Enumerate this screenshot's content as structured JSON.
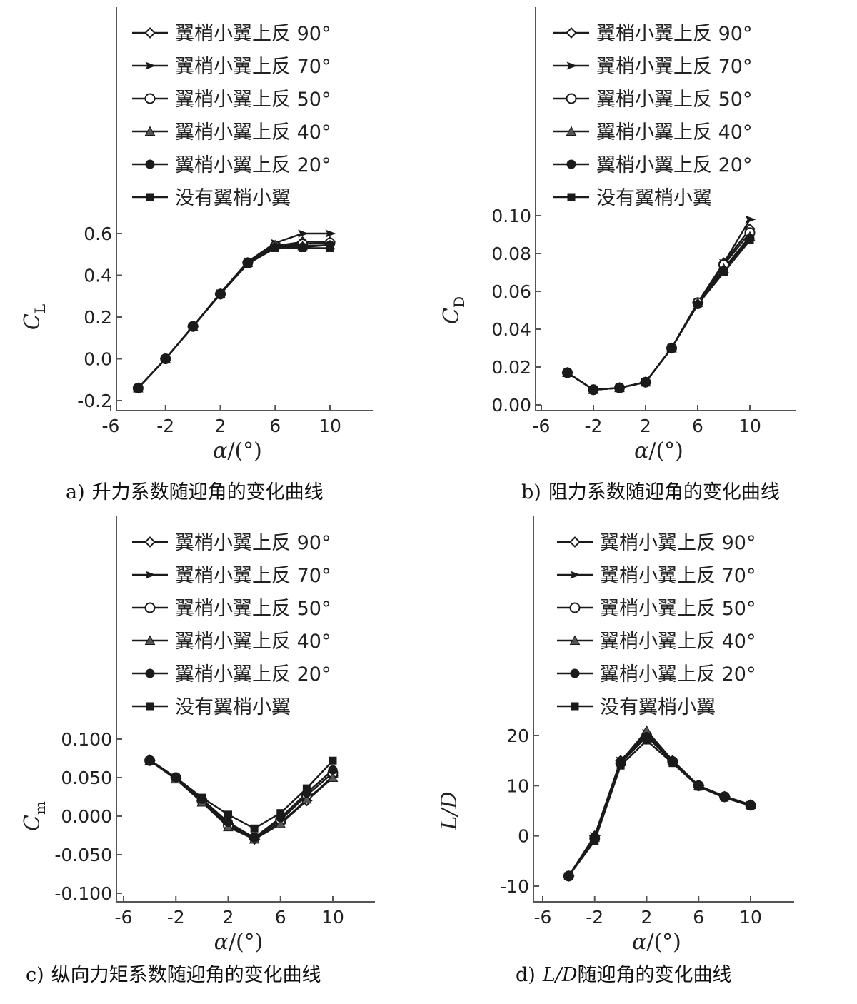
{
  "legend_labels": [
    "翼梢小翼上反 90°",
    "翼梢小翼上反 70°",
    "翼梢小翼上反 50°",
    "翼梢小翼上反 40°",
    "翼梢小翼上反 20°",
    "没有翼梢小翼"
  ],
  "xlabel": {
    "symbol": "α",
    "unit": "/(°)"
  },
  "line_color": "#1a1a1a",
  "chart_data": [
    {
      "id": "a",
      "type": "line",
      "sublabel": "a)",
      "caption": "升力系数随迎角的变化曲线",
      "ylabel": {
        "main": "C",
        "sub": "L"
      },
      "xlim": [
        -6,
        12
      ],
      "ylim": [
        -0.22,
        0.62
      ],
      "xticks": [
        "-6",
        "-2",
        "2",
        "6",
        "10"
      ],
      "xtick_values": [
        -6,
        -2,
        2,
        6,
        10
      ],
      "yticks": [
        "-0.2",
        "0.0",
        "0.2",
        "0.4",
        "0.6"
      ],
      "ytick_values": [
        -0.2,
        0.0,
        0.2,
        0.4,
        0.6
      ],
      "x": [
        -4,
        -2,
        0,
        2,
        4,
        6,
        8,
        10
      ],
      "series": [
        {
          "marker": "diamond-open",
          "values": [
            -0.14,
            0.0,
            0.155,
            0.31,
            0.46,
            0.54,
            0.56,
            0.56
          ]
        },
        {
          "marker": "arrow",
          "values": [
            -0.14,
            0.0,
            0.155,
            0.315,
            0.465,
            0.555,
            0.6,
            0.6
          ]
        },
        {
          "marker": "circle-open",
          "values": [
            -0.14,
            0.0,
            0.155,
            0.31,
            0.46,
            0.54,
            0.55,
            0.555
          ]
        },
        {
          "marker": "triangle",
          "values": [
            -0.14,
            0.0,
            0.155,
            0.31,
            0.46,
            0.545,
            0.54,
            0.545
          ]
        },
        {
          "marker": "circle-filled",
          "values": [
            -0.14,
            0.0,
            0.155,
            0.31,
            0.46,
            0.535,
            0.535,
            0.545
          ]
        },
        {
          "marker": "square-filled",
          "values": [
            -0.14,
            0.0,
            0.155,
            0.31,
            0.455,
            0.53,
            0.53,
            0.53
          ]
        }
      ]
    },
    {
      "id": "b",
      "type": "line",
      "sublabel": "b)",
      "caption": "阻力系数随迎角的变化曲线",
      "ylabel": {
        "main": "C",
        "sub": "D"
      },
      "xlim": [
        -6,
        12
      ],
      "ylim": [
        0.0,
        0.1
      ],
      "xticks": [
        "-6",
        "-2",
        "2",
        "6",
        "10"
      ],
      "xtick_values": [
        -6,
        -2,
        2,
        6,
        10
      ],
      "yticks": [
        "0.00",
        "0.02",
        "0.04",
        "0.06",
        "0.08",
        "0.10"
      ],
      "ytick_values": [
        0.0,
        0.02,
        0.04,
        0.06,
        0.08,
        0.1
      ],
      "x": [
        -4,
        -2,
        0,
        2,
        4,
        6,
        8,
        10
      ],
      "series": [
        {
          "marker": "diamond-open",
          "values": [
            0.017,
            0.008,
            0.009,
            0.012,
            0.03,
            0.054,
            0.075,
            0.093
          ]
        },
        {
          "marker": "arrow",
          "values": [
            0.017,
            0.008,
            0.009,
            0.012,
            0.03,
            0.054,
            0.075,
            0.098
          ]
        },
        {
          "marker": "circle-open",
          "values": [
            0.017,
            0.008,
            0.009,
            0.012,
            0.03,
            0.054,
            0.074,
            0.091
          ]
        },
        {
          "marker": "triangle",
          "values": [
            0.017,
            0.008,
            0.009,
            0.012,
            0.03,
            0.054,
            0.072,
            0.089
          ]
        },
        {
          "marker": "circle-filled",
          "values": [
            0.017,
            0.008,
            0.009,
            0.012,
            0.03,
            0.053,
            0.071,
            0.088
          ]
        },
        {
          "marker": "square-filled",
          "values": [
            0.017,
            0.008,
            0.009,
            0.012,
            0.03,
            0.053,
            0.07,
            0.087
          ]
        }
      ]
    },
    {
      "id": "c",
      "type": "line",
      "sublabel": "c)",
      "caption": "纵向力矩系数随迎角的变化曲线",
      "ylabel": {
        "main": "C",
        "sub": "m"
      },
      "xlim": [
        -6,
        12
      ],
      "ylim": [
        -0.1,
        0.1
      ],
      "xticks": [
        "-6",
        "-2",
        "2",
        "6",
        "10"
      ],
      "xtick_values": [
        -6,
        -2,
        2,
        6,
        10
      ],
      "yticks": [
        "-0.100",
        "-0.050",
        "0.000",
        "0.050",
        "0.100"
      ],
      "ytick_values": [
        -0.1,
        -0.05,
        0.0,
        0.05,
        0.1
      ],
      "x": [
        -4,
        -2,
        0,
        2,
        4,
        6,
        8,
        10
      ],
      "series": [
        {
          "marker": "diamond-open",
          "values": [
            0.073,
            0.05,
            0.02,
            -0.01,
            -0.03,
            -0.008,
            0.02,
            0.052
          ]
        },
        {
          "marker": "arrow",
          "values": [
            0.072,
            0.049,
            0.02,
            -0.012,
            -0.03,
            -0.01,
            0.02,
            0.05
          ]
        },
        {
          "marker": "circle-open",
          "values": [
            0.072,
            0.05,
            0.02,
            -0.012,
            -0.028,
            -0.005,
            0.027,
            0.056
          ]
        },
        {
          "marker": "triangle",
          "values": [
            0.072,
            0.048,
            0.018,
            -0.014,
            -0.03,
            -0.01,
            0.022,
            0.05
          ]
        },
        {
          "marker": "circle-filled",
          "values": [
            0.072,
            0.05,
            0.022,
            -0.008,
            -0.028,
            -0.002,
            0.03,
            0.06
          ]
        },
        {
          "marker": "square-filled",
          "values": [
            0.072,
            0.05,
            0.024,
            0.002,
            -0.016,
            0.004,
            0.036,
            0.072
          ]
        }
      ]
    },
    {
      "id": "d",
      "type": "line",
      "sublabel": "d)",
      "caption_ital": "L/D",
      "caption": "随迎角的变化曲线",
      "ylabel": {
        "main": "L/D",
        "sub": ""
      },
      "xlim": [
        -6,
        12
      ],
      "ylim": [
        -10.5,
        22
      ],
      "xticks": [
        "-6",
        "-2",
        "2",
        "6",
        "10"
      ],
      "xtick_values": [
        -6,
        -2,
        2,
        6,
        10
      ],
      "yticks": [
        "-10",
        "0",
        "10",
        "20"
      ],
      "ytick_values": [
        -10,
        0,
        10,
        20
      ],
      "x": [
        -4,
        -2,
        0,
        2,
        4,
        6,
        8,
        10
      ],
      "series": [
        {
          "marker": "diamond-open",
          "values": [
            -8,
            0,
            15,
            20,
            15,
            10,
            7.8,
            6.2
          ]
        },
        {
          "marker": "arrow",
          "values": [
            -8,
            0,
            15,
            20.5,
            15,
            10,
            7.8,
            6.2
          ]
        },
        {
          "marker": "circle-open",
          "values": [
            -8,
            -0.5,
            14.5,
            20,
            14.8,
            10,
            7.8,
            6.1
          ]
        },
        {
          "marker": "triangle",
          "values": [
            -8,
            -0.3,
            14.8,
            21,
            15,
            10,
            7.9,
            6.2
          ]
        },
        {
          "marker": "circle-filled",
          "values": [
            -8,
            -0.5,
            14.5,
            19.8,
            14.8,
            10,
            7.7,
            6.1
          ]
        },
        {
          "marker": "square-filled",
          "values": [
            -8,
            -1,
            14,
            19,
            14.5,
            9.8,
            7.6,
            6.0
          ]
        }
      ]
    }
  ]
}
